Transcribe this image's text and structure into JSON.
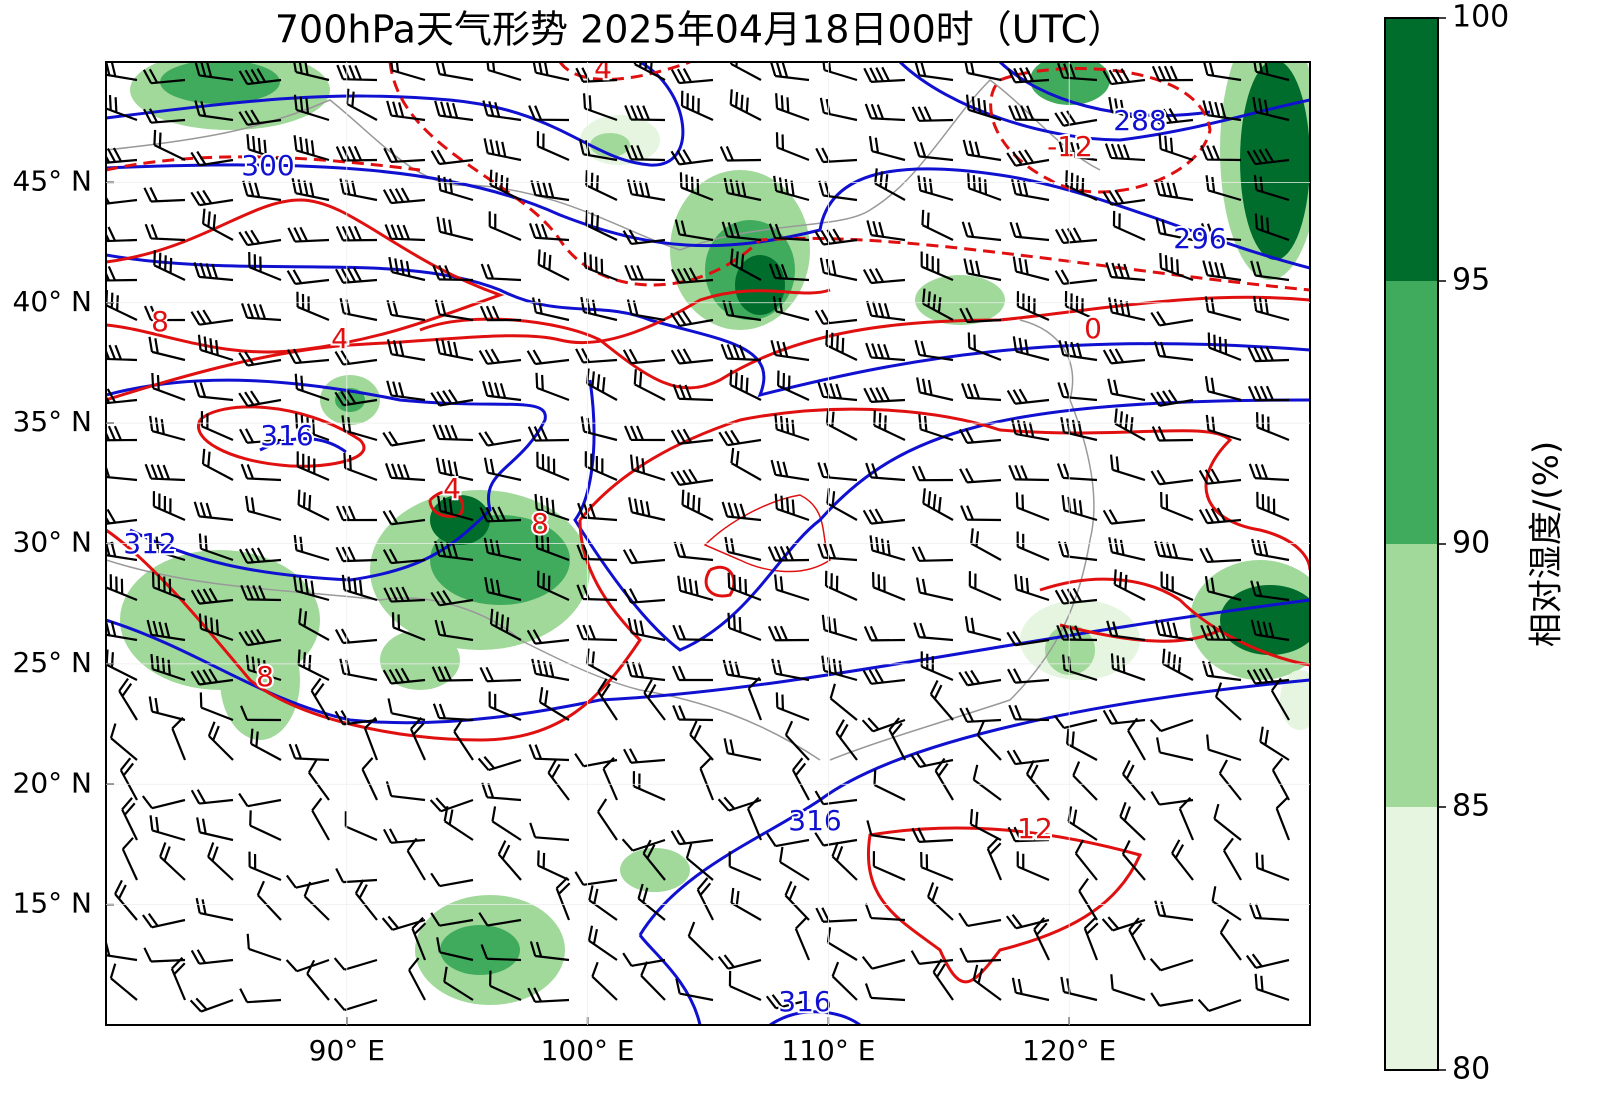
{
  "title": "700hPa天气形势 2025年04月18日00时（UTC）",
  "map": {
    "lon_range": [
      80,
      130
    ],
    "lat_range": [
      10,
      50
    ],
    "lon_ticks": [
      {
        "value": 90,
        "label": "90° E"
      },
      {
        "value": 100,
        "label": "100° E"
      },
      {
        "value": 110,
        "label": "110° E"
      },
      {
        "value": 120,
        "label": "120° E"
      }
    ],
    "lat_ticks": [
      {
        "value": 45,
        "label": "45° N"
      },
      {
        "value": 40,
        "label": "40° N"
      },
      {
        "value": 35,
        "label": "35° N"
      },
      {
        "value": 30,
        "label": "30° N"
      },
      {
        "value": 25,
        "label": "25° N"
      },
      {
        "value": 20,
        "label": "20° N"
      },
      {
        "value": 15,
        "label": "15° N"
      }
    ]
  },
  "colorbar": {
    "label": "相对湿度/(%)",
    "ticks": [
      80,
      85,
      90,
      95,
      100
    ],
    "colors": [
      "#e5f5e0",
      "#a1d99b",
      "#41ab5d",
      "#006d2c"
    ]
  },
  "contour_labels": {
    "height": [
      300,
      288,
      296,
      316,
      312,
      316,
      316
    ],
    "temperature": [
      8,
      4,
      0,
      12,
      -12,
      4,
      4,
      8,
      8
    ]
  }
}
